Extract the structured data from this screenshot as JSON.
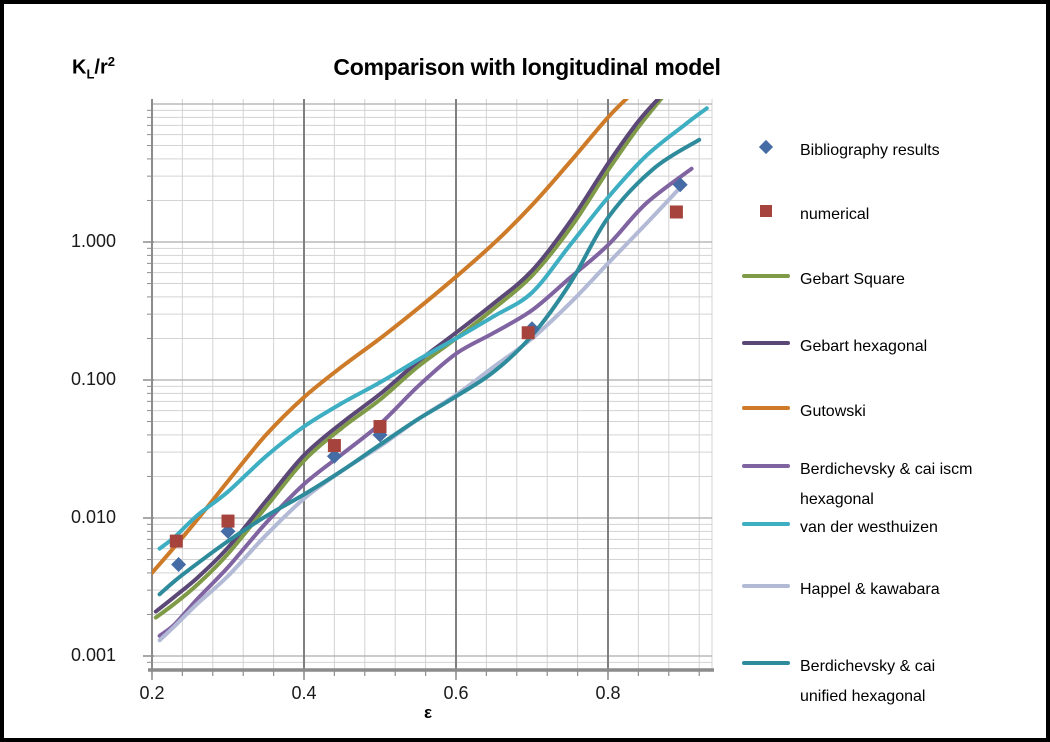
{
  "title": "Comparison with longitudinal model",
  "y_axis": {
    "title_base": "K",
    "title_sub": "L",
    "title_mid": "/r",
    "title_sup": "2",
    "scale": "log",
    "ticks": [
      {
        "label": "1.000",
        "value": 1.0
      },
      {
        "label": "0.100",
        "value": 0.1
      },
      {
        "label": "0.010",
        "value": 0.01
      },
      {
        "label": "0.001",
        "value": 0.001
      }
    ]
  },
  "x_axis": {
    "title": "ε",
    "range": [
      0.2,
      0.937
    ],
    "major_unit": 0.2,
    "minor_unit": 0.04,
    "ticks": [
      {
        "label": "0.2",
        "value": 0.2
      },
      {
        "label": "0.4",
        "value": 0.4
      },
      {
        "label": "0.6",
        "value": 0.6
      },
      {
        "label": "0.8",
        "value": 0.8
      }
    ]
  },
  "colors": {
    "bibliography": "#456CA5",
    "numerical": "#A5433C",
    "gebart_square": "#7F9B48",
    "gebart_hexagonal": "#5C4876",
    "gutowski": "#CE7B29",
    "berdichevsky_iscm": "#8064A2",
    "van_der_westhuizen": "#3EAEC2",
    "happel": "#B3BAD6",
    "berdichevsky_unified": "#2E8B9C",
    "grid_minor": "#D3D3D3",
    "grid_major_h": "#ACACAC",
    "grid_major_v": "#808080",
    "axis": "#8C8C8C"
  },
  "legend": {
    "items": [
      {
        "label": "Bibliography results",
        "lines": [
          "Bibliography results"
        ],
        "marker": "diamond",
        "color": "#456CA5"
      },
      {
        "label": "numerical",
        "lines": [
          "numerical"
        ],
        "marker": "square",
        "color": "#A5433C"
      },
      {
        "label": "Gebart Square",
        "lines": [
          "Gebart Square"
        ],
        "marker": "line",
        "color": "#7F9B48"
      },
      {
        "label": "Gebart hexagonal",
        "lines": [
          "Gebart hexagonal"
        ],
        "marker": "line",
        "color": "#5C4876"
      },
      {
        "label": "Gutowski",
        "lines": [
          "Gutowski"
        ],
        "marker": "line",
        "color": "#CE7B29"
      },
      {
        "label": "Berdichevsky & cai iscm hexagonal",
        "lines": [
          "Berdichevsky & cai iscm",
          "hexagonal"
        ],
        "marker": "line",
        "color": "#8064A2"
      },
      {
        "label": "van der westhuizen",
        "lines": [
          "van der westhuizen"
        ],
        "marker": "line",
        "color": "#3EAEC2"
      },
      {
        "label": "Happel & kawabara",
        "lines": [
          "Happel & kawabara"
        ],
        "marker": "line",
        "color": "#B3BAD6"
      },
      {
        "label": "Berdichevsky & cai unified hexagonal",
        "lines": [
          "Berdichevsky & cai",
          "unified hexagonal"
        ],
        "marker": "line",
        "color": "#2E8B9C"
      }
    ]
  },
  "chart_data": {
    "type": "line",
    "title": "Comparison with longitudinal model",
    "xlabel": "ε",
    "ylabel": "KL/r2",
    "y_scale": "log",
    "ylim": [
      0.00065,
      11.0
    ],
    "xlim": [
      0.2,
      0.937
    ],
    "scatter_series": [
      {
        "name": "Bibliography results",
        "marker": "diamond",
        "color": "#456CA5",
        "points": [
          [
            0.235,
            0.0046
          ],
          [
            0.3,
            0.008
          ],
          [
            0.44,
            0.028
          ],
          [
            0.5,
            0.04
          ],
          [
            0.7,
            0.235
          ],
          [
            0.895,
            2.6
          ]
        ]
      },
      {
        "name": "numerical",
        "marker": "square",
        "color": "#A5433C",
        "points": [
          [
            0.232,
            0.0068
          ],
          [
            0.3,
            0.0095
          ],
          [
            0.44,
            0.0335
          ],
          [
            0.5,
            0.046
          ],
          [
            0.695,
            0.22
          ],
          [
            0.89,
            1.65
          ]
        ]
      }
    ],
    "line_series": [
      {
        "name": "Gebart Square",
        "color": "#7F9B48",
        "points": [
          [
            0.205,
            0.0019
          ],
          [
            0.23,
            0.0024
          ],
          [
            0.26,
            0.0033
          ],
          [
            0.3,
            0.0055
          ],
          [
            0.35,
            0.012
          ],
          [
            0.4,
            0.026
          ],
          [
            0.45,
            0.045
          ],
          [
            0.5,
            0.072
          ],
          [
            0.55,
            0.125
          ],
          [
            0.6,
            0.2
          ],
          [
            0.65,
            0.33
          ],
          [
            0.7,
            0.57
          ],
          [
            0.75,
            1.25
          ],
          [
            0.8,
            3.3
          ],
          [
            0.84,
            6.8
          ],
          [
            0.875,
            11.8
          ]
        ]
      },
      {
        "name": "Gebart hexagonal",
        "color": "#5C4876",
        "points": [
          [
            0.205,
            0.0021
          ],
          [
            0.23,
            0.0027
          ],
          [
            0.26,
            0.0037
          ],
          [
            0.3,
            0.0061
          ],
          [
            0.35,
            0.0133
          ],
          [
            0.4,
            0.0285
          ],
          [
            0.45,
            0.049
          ],
          [
            0.5,
            0.079
          ],
          [
            0.55,
            0.136
          ],
          [
            0.6,
            0.22
          ],
          [
            0.65,
            0.36
          ],
          [
            0.7,
            0.62
          ],
          [
            0.75,
            1.4
          ],
          [
            0.8,
            3.7
          ],
          [
            0.84,
            7.5
          ],
          [
            0.872,
            11.8
          ]
        ]
      },
      {
        "name": "Gutowski",
        "color": "#CE7B29",
        "points": [
          [
            0.2,
            0.004
          ],
          [
            0.23,
            0.0062
          ],
          [
            0.26,
            0.0098
          ],
          [
            0.3,
            0.0185
          ],
          [
            0.35,
            0.04
          ],
          [
            0.4,
            0.075
          ],
          [
            0.45,
            0.125
          ],
          [
            0.5,
            0.2
          ],
          [
            0.55,
            0.33
          ],
          [
            0.6,
            0.56
          ],
          [
            0.65,
            0.98
          ],
          [
            0.7,
            1.85
          ],
          [
            0.75,
            3.8
          ],
          [
            0.8,
            8.0
          ],
          [
            0.832,
            12.0
          ]
        ]
      },
      {
        "name": "Berdichevsky & cai iscm hexagonal",
        "color": "#8064A2",
        "points": [
          [
            0.21,
            0.0014
          ],
          [
            0.23,
            0.0017
          ],
          [
            0.26,
            0.0026
          ],
          [
            0.3,
            0.0044
          ],
          [
            0.35,
            0.0092
          ],
          [
            0.4,
            0.0176
          ],
          [
            0.45,
            0.029
          ],
          [
            0.5,
            0.048
          ],
          [
            0.55,
            0.09
          ],
          [
            0.6,
            0.155
          ],
          [
            0.65,
            0.22
          ],
          [
            0.7,
            0.32
          ],
          [
            0.75,
            0.55
          ],
          [
            0.8,
            0.95
          ],
          [
            0.85,
            1.9
          ],
          [
            0.91,
            3.4
          ]
        ]
      },
      {
        "name": "van der westhuizen",
        "color": "#3EAEC2",
        "points": [
          [
            0.21,
            0.006
          ],
          [
            0.23,
            0.0073
          ],
          [
            0.26,
            0.0105
          ],
          [
            0.3,
            0.0155
          ],
          [
            0.35,
            0.028
          ],
          [
            0.4,
            0.046
          ],
          [
            0.45,
            0.068
          ],
          [
            0.5,
            0.096
          ],
          [
            0.55,
            0.14
          ],
          [
            0.6,
            0.2
          ],
          [
            0.65,
            0.29
          ],
          [
            0.7,
            0.43
          ],
          [
            0.75,
            0.95
          ],
          [
            0.8,
            2.1
          ],
          [
            0.85,
            4.2
          ],
          [
            0.9,
            7.0
          ],
          [
            0.93,
            9.3
          ]
        ]
      },
      {
        "name": "Happel & kawabara",
        "color": "#B3BAD6",
        "points": [
          [
            0.21,
            0.0013
          ],
          [
            0.23,
            0.00165
          ],
          [
            0.26,
            0.0024
          ],
          [
            0.3,
            0.0038
          ],
          [
            0.35,
            0.0075
          ],
          [
            0.4,
            0.0138
          ],
          [
            0.45,
            0.022
          ],
          [
            0.5,
            0.033
          ],
          [
            0.55,
            0.052
          ],
          [
            0.6,
            0.078
          ],
          [
            0.65,
            0.125
          ],
          [
            0.7,
            0.2
          ],
          [
            0.75,
            0.36
          ],
          [
            0.8,
            0.7
          ],
          [
            0.85,
            1.35
          ],
          [
            0.897,
            2.55
          ]
        ]
      },
      {
        "name": "Berdichevsky & cai unified hexagonal",
        "color": "#2E8B9C",
        "points": [
          [
            0.21,
            0.0028
          ],
          [
            0.23,
            0.0035
          ],
          [
            0.26,
            0.0047
          ],
          [
            0.3,
            0.0068
          ],
          [
            0.35,
            0.0103
          ],
          [
            0.4,
            0.0148
          ],
          [
            0.45,
            0.022
          ],
          [
            0.5,
            0.034
          ],
          [
            0.55,
            0.052
          ],
          [
            0.6,
            0.076
          ],
          [
            0.65,
            0.115
          ],
          [
            0.7,
            0.21
          ],
          [
            0.75,
            0.5
          ],
          [
            0.8,
            1.5
          ],
          [
            0.86,
            3.4
          ],
          [
            0.92,
            5.5
          ]
        ]
      }
    ]
  }
}
